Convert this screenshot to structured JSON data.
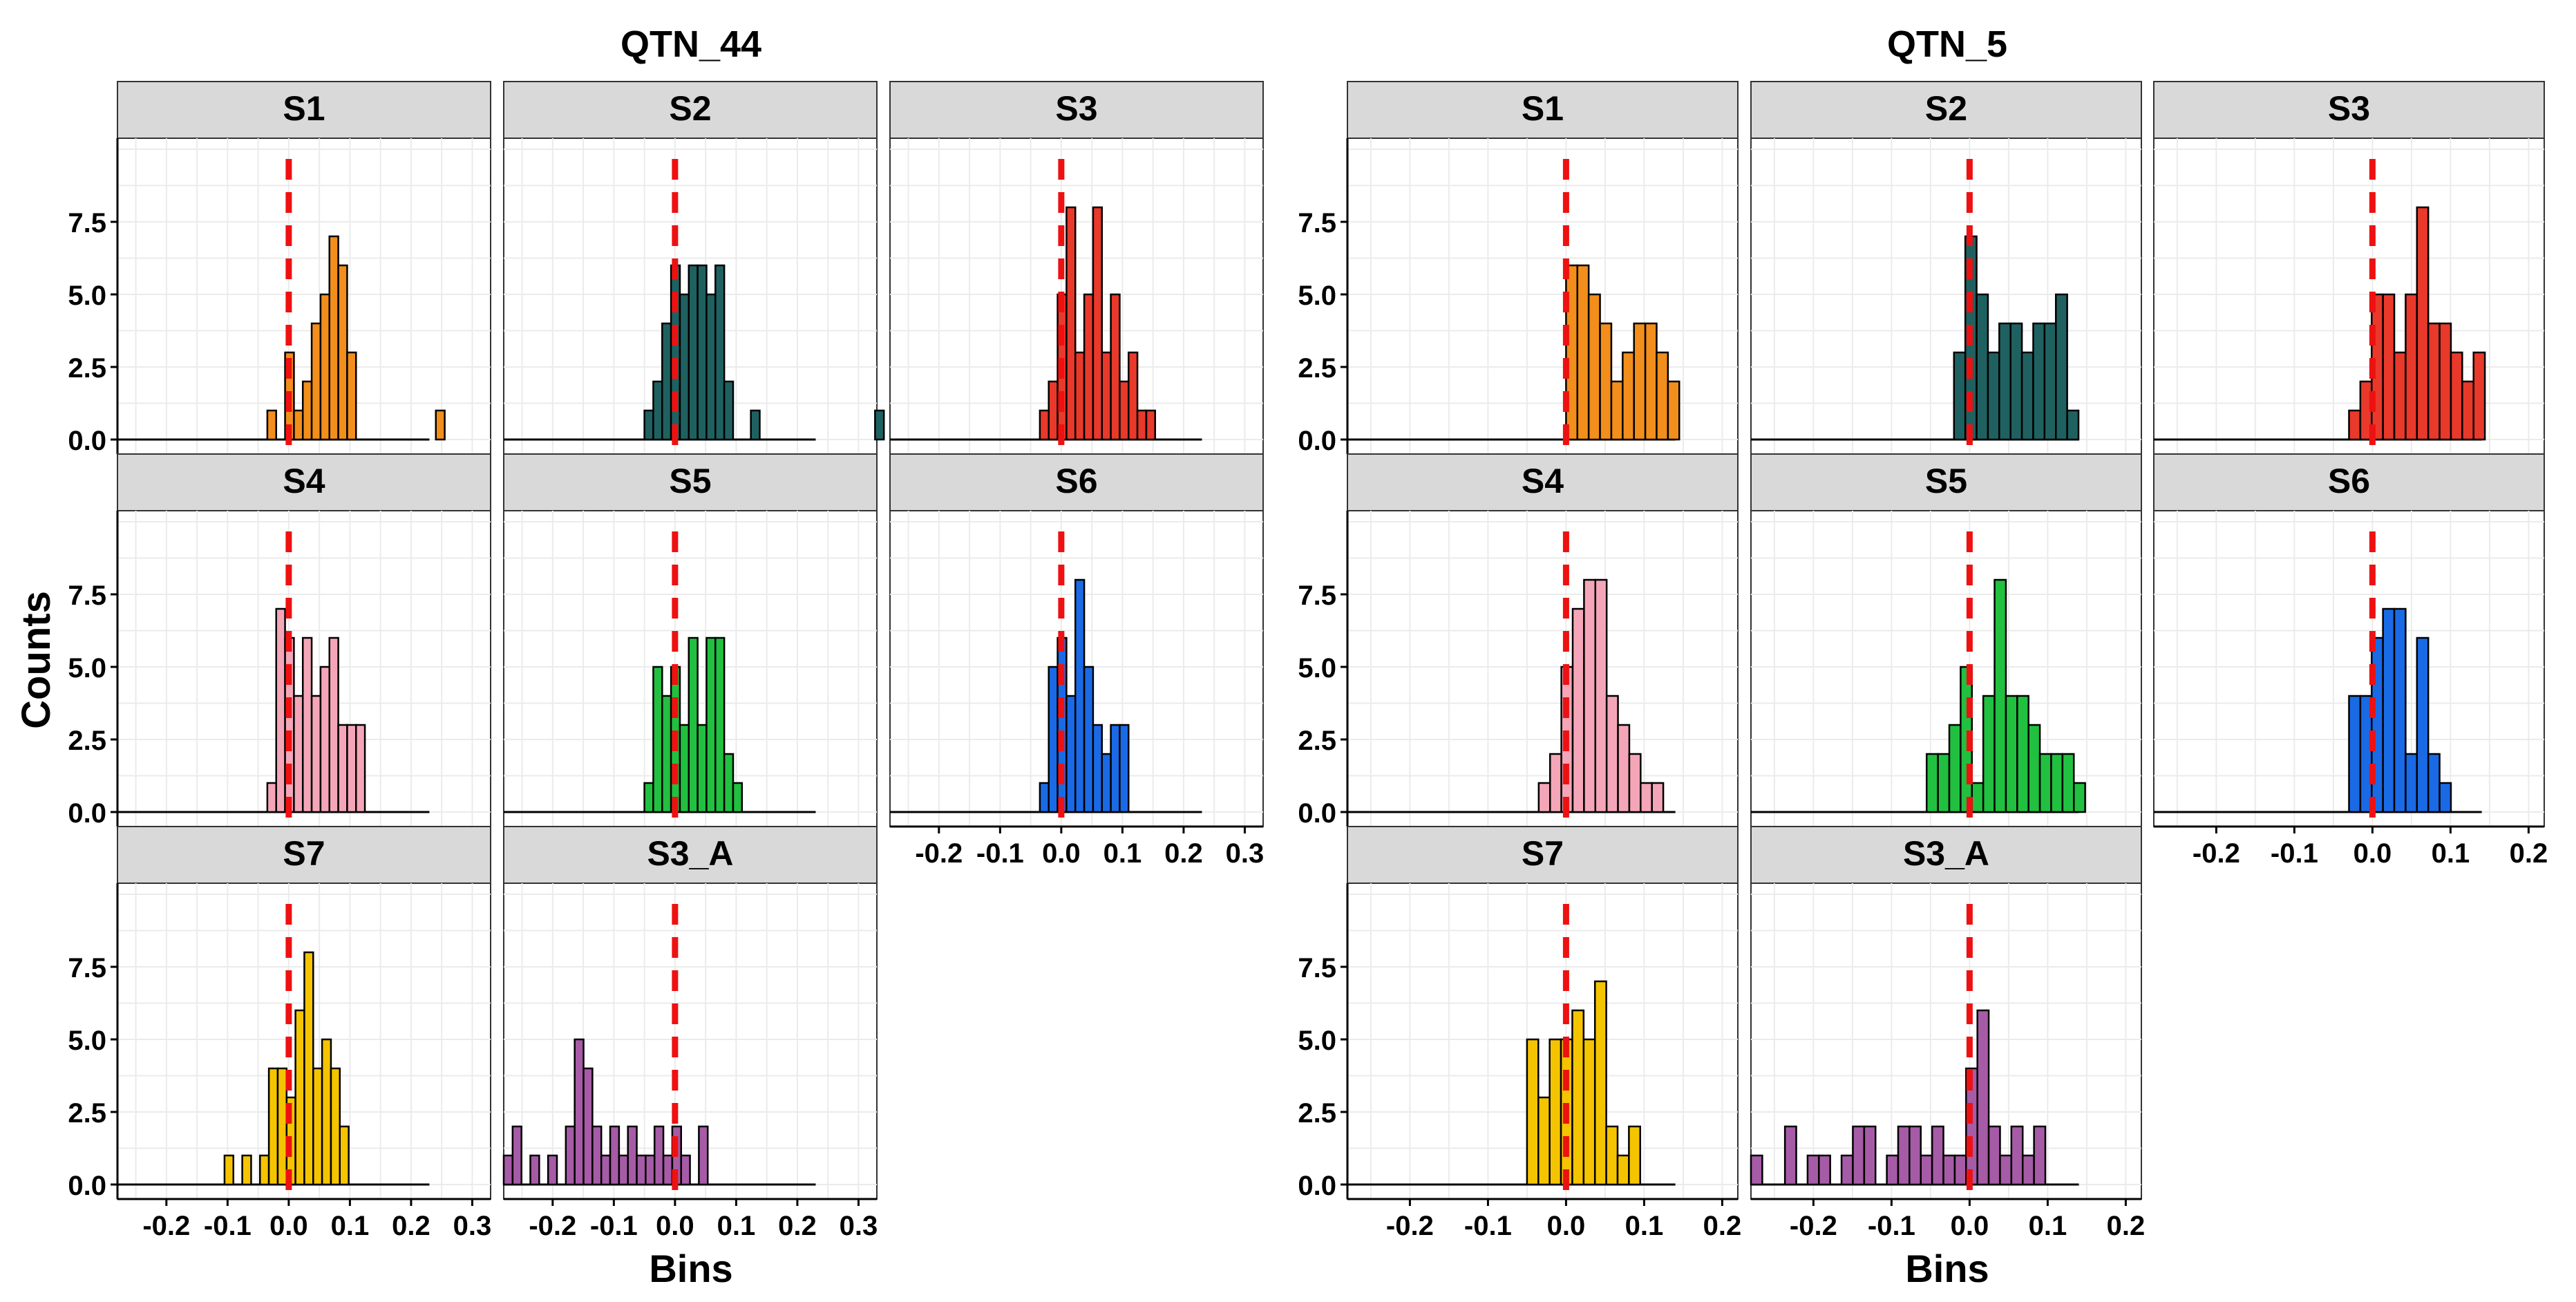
{
  "figure": {
    "ylabel": "Counts"
  },
  "colors": {
    "S1": "#F28E1C",
    "S2": "#1F6160",
    "S3": "#E8392B",
    "S4": "#F4A6B8",
    "S5": "#22C040",
    "S6": "#1A6AE6",
    "S7": "#F5C400",
    "S3_A": "#A65BA6",
    "refline": "#EE1111",
    "strip_bg": "#D9D9D9"
  },
  "chart_data": [
    {
      "type": "bar",
      "title": "QTN_44",
      "xlabel": "Bins",
      "ylabel": "Counts",
      "xlim": [
        -0.28,
        0.33
      ],
      "ylim": [
        0,
        10
      ],
      "x_ticks": [
        "-0.2",
        "-0.1",
        "0.0",
        "0.1",
        "0.2",
        "0.3"
      ],
      "y_ticks": [
        "0.0",
        "2.5",
        "5.0",
        "7.5"
      ],
      "reference_line_x": 0.0,
      "bin_width": 0.0145,
      "baseline_range": [
        -0.28,
        0.23
      ],
      "panels": [
        {
          "strip": "S1",
          "bins_start": -0.035,
          "counts": [
            1,
            0,
            3,
            1,
            2,
            4,
            5,
            7,
            6,
            3,
            0,
            0,
            0,
            0,
            0,
            0,
            0,
            0,
            0,
            1
          ]
        },
        {
          "strip": "S2",
          "bins_start": -0.05,
          "counts": [
            1,
            2,
            4,
            6,
            5,
            6,
            6,
            5,
            6,
            2,
            0,
            0,
            1,
            0,
            0,
            0,
            0,
            0,
            0,
            0,
            0,
            0,
            0,
            0,
            0,
            0,
            1
          ]
        },
        {
          "strip": "S3",
          "bins_start": -0.035,
          "counts": [
            1,
            2,
            5,
            8,
            3,
            5,
            8,
            3,
            5,
            2,
            3,
            1,
            1
          ]
        },
        {
          "strip": "S4",
          "bins_start": -0.035,
          "counts": [
            1,
            7,
            6,
            4,
            6,
            4,
            5,
            6,
            3,
            3,
            3
          ]
        },
        {
          "strip": "S5",
          "bins_start": -0.05,
          "counts": [
            1,
            5,
            4,
            5,
            3,
            6,
            3,
            6,
            6,
            2,
            1
          ]
        },
        {
          "strip": "S6",
          "bins_start": -0.035,
          "counts": [
            1,
            5,
            6,
            4,
            8,
            5,
            3,
            2,
            3,
            3
          ]
        },
        {
          "strip": "S7",
          "bins_start": -0.105,
          "counts": [
            1,
            0,
            1,
            0,
            1,
            4,
            4,
            3,
            6,
            8,
            4,
            5,
            4,
            2
          ]
        },
        {
          "strip": "S3_A",
          "bins_start": -0.28,
          "counts": [
            1,
            2,
            0,
            1,
            0,
            1,
            0,
            2,
            5,
            4,
            2,
            1,
            2,
            1,
            2,
            1,
            1,
            2,
            1,
            2,
            1,
            0,
            2
          ]
        }
      ]
    },
    {
      "type": "bar",
      "title": "QTN_5",
      "xlabel": "Bins",
      "ylabel": "Counts",
      "xlim": [
        -0.28,
        0.22
      ],
      "ylim": [
        0,
        10
      ],
      "x_ticks": [
        "-0.2",
        "-0.1",
        "0.0",
        "0.1",
        "0.2"
      ],
      "y_ticks": [
        "0.0",
        "2.5",
        "5.0",
        "7.5"
      ],
      "reference_line_x": 0.0,
      "bin_width": 0.0145,
      "baseline_range": [
        -0.28,
        0.14
      ],
      "panels": [
        {
          "strip": "S1",
          "bins_start": 0.0,
          "counts": [
            6,
            6,
            5,
            4,
            2,
            3,
            4,
            4,
            3,
            2
          ]
        },
        {
          "strip": "S2",
          "bins_start": -0.02,
          "counts": [
            3,
            7,
            5,
            3,
            4,
            4,
            3,
            4,
            4,
            5,
            1
          ]
        },
        {
          "strip": "S3",
          "bins_start": -0.03,
          "counts": [
            1,
            2,
            5,
            5,
            3,
            5,
            8,
            4,
            4,
            3,
            2,
            3
          ]
        },
        {
          "strip": "S4",
          "bins_start": -0.035,
          "counts": [
            1,
            2,
            5,
            7,
            8,
            8,
            4,
            3,
            2,
            1,
            1
          ]
        },
        {
          "strip": "S5",
          "bins_start": -0.055,
          "counts": [
            2,
            2,
            3,
            5,
            1,
            4,
            8,
            4,
            4,
            3,
            2,
            2,
            2,
            1
          ]
        },
        {
          "strip": "S6",
          "bins_start": -0.03,
          "counts": [
            4,
            4,
            6,
            7,
            7,
            2,
            6,
            2,
            1
          ]
        },
        {
          "strip": "S7",
          "bins_start": -0.05,
          "counts": [
            5,
            3,
            5,
            5,
            6,
            5,
            7,
            2,
            1,
            2
          ]
        },
        {
          "strip": "S3_A",
          "bins_start": -0.28,
          "counts": [
            1,
            0,
            0,
            2,
            0,
            1,
            1,
            0,
            1,
            2,
            2,
            0,
            1,
            2,
            2,
            1,
            2,
            1,
            1,
            4,
            6,
            2,
            1,
            2,
            1,
            2
          ]
        }
      ]
    }
  ]
}
